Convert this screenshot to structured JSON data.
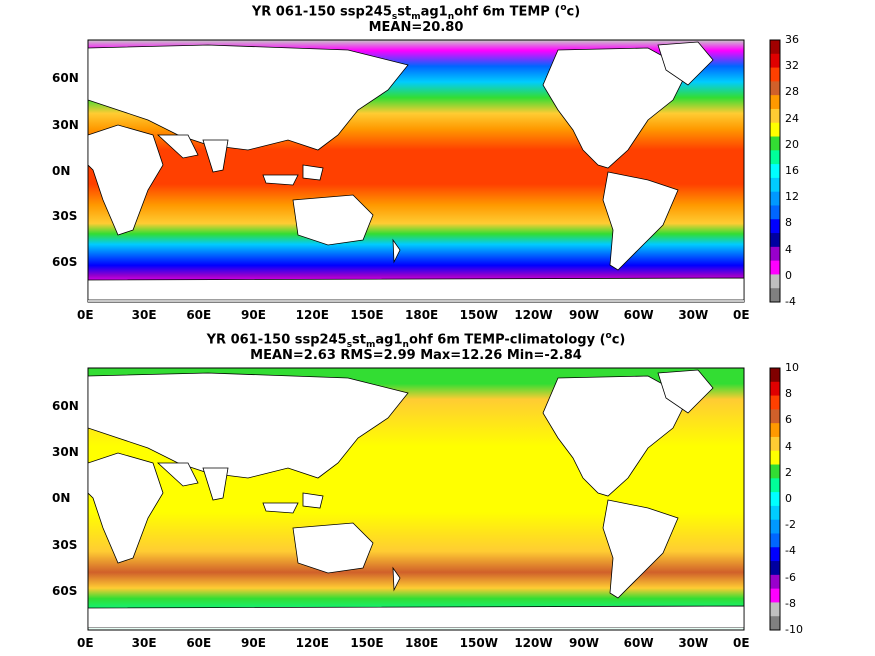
{
  "panels": [
    {
      "title_pre": "YR 061-150 ssp245",
      "title_sub1": "s",
      "title_mid": "st",
      "title_sub2": "m",
      "title_mid2": "ag1",
      "title_sub3": "n",
      "title_post": "ohf 6m TEMP (",
      "title_sup": "o",
      "title_unit": "c)",
      "stats": "MEAN=20.80",
      "colorbar_labels": [
        "36",
        "32",
        "28",
        "24",
        "20",
        "16",
        "12",
        "8",
        "4",
        "0",
        "-4"
      ],
      "colorbar_colors": [
        "#a00000",
        "#e00000",
        "#ff4000",
        "#d0602a",
        "#ff9900",
        "#ffcc33",
        "#ffff00",
        "#33dd33",
        "#00ff99",
        "#00ffff",
        "#00ccff",
        "#0099ff",
        "#0066ff",
        "#0000ff",
        "#0000a0",
        "#9900cc",
        "#ff00ff",
        "#c0c0c0",
        "#808080"
      ]
    },
    {
      "title_pre": "YR 061-150 ssp245",
      "title_sub1": "s",
      "title_mid": "st",
      "title_sub2": "m",
      "title_mid2": "ag1",
      "title_sub3": "n",
      "title_post": "ohf 6m TEMP-climatology (",
      "title_sup": "o",
      "title_unit": "c)",
      "stats": "MEAN=2.63   RMS=2.99   Max=12.26   Min=-2.84",
      "colorbar_labels": [
        "10",
        "8",
        "6",
        "4",
        "2",
        "0",
        "-2",
        "-4",
        "-6",
        "-8",
        "-10"
      ],
      "colorbar_colors": [
        "#800000",
        "#e00000",
        "#ff4000",
        "#d0602a",
        "#ff9900",
        "#ffcc33",
        "#ffff00",
        "#33dd33",
        "#00ff99",
        "#00ffff",
        "#00ccff",
        "#0099ff",
        "#0066ff",
        "#0000ff",
        "#0000a0",
        "#9900cc",
        "#ff00ff",
        "#c0c0c0",
        "#808080"
      ]
    }
  ],
  "lon_ticks": [
    "0E",
    "30E",
    "60E",
    "90E",
    "120E",
    "150E",
    "180E",
    "150W",
    "120W",
    "90W",
    "60W",
    "30W",
    "0E"
  ],
  "lat_ticks": [
    "60N",
    "30N",
    "0N",
    "30S",
    "60S"
  ],
  "land_color": "#ffffff",
  "missing_color": "#c8c8c8"
}
